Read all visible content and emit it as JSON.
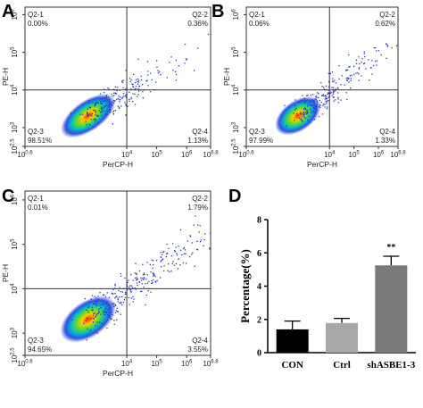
{
  "chart_data": [
    {
      "type": "scatter",
      "panel_label": "A",
      "xlabel": "PerCP-H",
      "ylabel": "PE-H",
      "x_ticks": [
        {
          "base": "10",
          "exp": "0.6"
        },
        {
          "base": "10",
          "exp": "4"
        },
        {
          "base": "10",
          "exp": "5"
        },
        {
          "base": "10",
          "exp": "6"
        },
        {
          "base": "10",
          "exp": "6.8"
        }
      ],
      "y_ticks": [
        {
          "base": "10",
          "exp": "2.5"
        },
        {
          "base": "10",
          "exp": "3"
        },
        {
          "base": "10",
          "exp": "4"
        },
        {
          "base": "10",
          "exp": "5"
        },
        {
          "base": "10",
          "exp": "6"
        }
      ],
      "quadrants": [
        {
          "name": "Q2-1",
          "value": "0.00%"
        },
        {
          "name": "Q2-2",
          "value": "0.36%"
        },
        {
          "name": "Q2-3",
          "value": "98.51%"
        },
        {
          "name": "Q2-4",
          "value": "1.13%"
        }
      ]
    },
    {
      "type": "scatter",
      "panel_label": "B",
      "xlabel": "PerCP-H",
      "ylabel": "PE-H",
      "x_ticks": [
        {
          "base": "10",
          "exp": "0.6"
        },
        {
          "base": "10",
          "exp": "4"
        },
        {
          "base": "10",
          "exp": "5"
        },
        {
          "base": "10",
          "exp": "6"
        },
        {
          "base": "10",
          "exp": "6.8"
        }
      ],
      "y_ticks": [
        {
          "base": "10",
          "exp": "2.5"
        },
        {
          "base": "10",
          "exp": "3"
        },
        {
          "base": "10",
          "exp": "4"
        },
        {
          "base": "10",
          "exp": "5"
        },
        {
          "base": "10",
          "exp": "6"
        }
      ],
      "quadrants": [
        {
          "name": "Q2-1",
          "value": "0.06%"
        },
        {
          "name": "Q2-2",
          "value": "0.62%"
        },
        {
          "name": "Q2-3",
          "value": "97.99%"
        },
        {
          "name": "Q2-4",
          "value": "1.33%"
        }
      ]
    },
    {
      "type": "scatter",
      "panel_label": "C",
      "xlabel": "PerCP-H",
      "ylabel": "PE-H",
      "x_ticks": [
        {
          "base": "10",
          "exp": "0.6"
        },
        {
          "base": "10",
          "exp": "4"
        },
        {
          "base": "10",
          "exp": "5"
        },
        {
          "base": "10",
          "exp": "6"
        },
        {
          "base": "10",
          "exp": "6.8"
        }
      ],
      "y_ticks": [
        {
          "base": "10",
          "exp": "2.5"
        },
        {
          "base": "10",
          "exp": "3"
        },
        {
          "base": "10",
          "exp": "4"
        },
        {
          "base": "10",
          "exp": "5"
        },
        {
          "base": "10",
          "exp": "6"
        }
      ],
      "quadrants": [
        {
          "name": "Q2-1",
          "value": "0.01%"
        },
        {
          "name": "Q2-2",
          "value": "1.79%"
        },
        {
          "name": "Q2-3",
          "value": "94.65%"
        },
        {
          "name": "Q2-4",
          "value": "3.55%"
        }
      ]
    },
    {
      "type": "bar",
      "panel_label": "D",
      "categories": [
        "CON",
        "Ctrl",
        "shASBE1-3"
      ],
      "values": [
        1.4,
        1.78,
        5.25
      ],
      "errors": [
        0.5,
        0.28,
        0.55
      ],
      "bar_colors": [
        "#000000",
        "#a8a8a8",
        "#7a7a7a"
      ],
      "ylabel": "Percentage(%)",
      "ylim": [
        0,
        8
      ],
      "yticks": [
        "0",
        "2",
        "4",
        "6",
        "8"
      ],
      "annotation": {
        "category": "shASBE1-3",
        "text": "**"
      }
    }
  ]
}
